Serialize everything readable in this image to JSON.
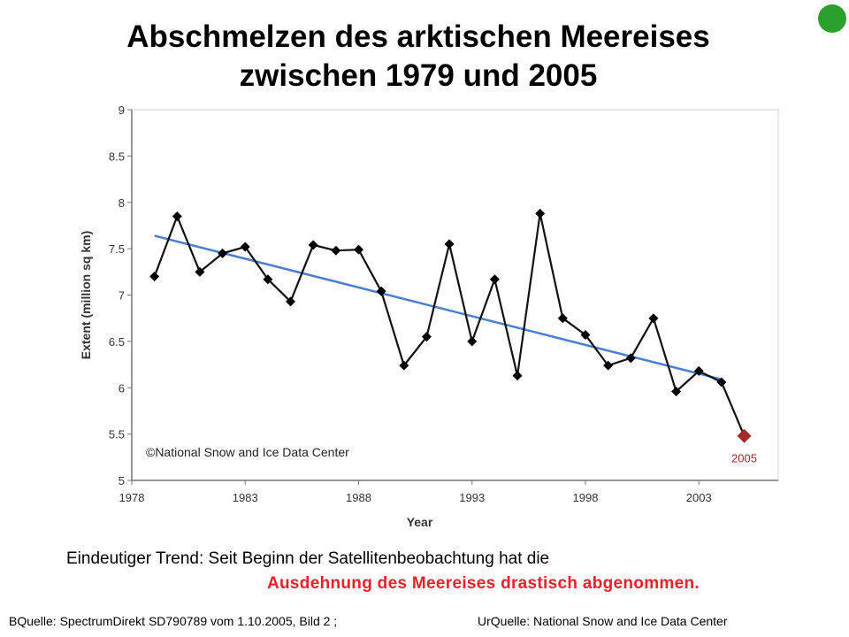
{
  "title_line1": "Abschmelzen des arktischen Meereises",
  "title_line2": "zwischen 1979 und 2005",
  "caption_line1": "Eindeutiger Trend: Seit Beginn der Satellitenbeobachtung hat die",
  "caption_line2": "Ausdehnung des Meereises drastisch abgenommen.",
  "source_left": "BQuelle: SpectrumDirekt  SD790789 vom 1.10.2005, Bild 2     ;",
  "source_right": "UrQuelle: National Snow and Ice Data Center",
  "colors": {
    "line": "#111111",
    "trend": "#4a7fd0",
    "highlight": "#a52a2a",
    "caption_emphasis": "#e8212a",
    "status_dot": "#2ca02c"
  },
  "chart_data": {
    "type": "line",
    "xlabel": "Year",
    "ylabel": "Extent (million sq km)",
    "xlim": [
      1978,
      2006.5
    ],
    "ylim": [
      5,
      9
    ],
    "x_ticks": [
      1978,
      1983,
      1988,
      1993,
      1998,
      2003
    ],
    "y_ticks": [
      "5",
      "5.5",
      "6",
      "6.5",
      "7",
      "7.5",
      "8",
      "8.5",
      "9"
    ],
    "grid": false,
    "watermark": "©National Snow and Ice Data Center",
    "series": [
      {
        "x": [
          1979,
          1980,
          1981,
          1982,
          1983,
          1984,
          1985,
          1986,
          1987,
          1988,
          1989,
          1990,
          1991,
          1992,
          1993,
          1994,
          1995,
          1996,
          1997,
          1998,
          1999,
          2000,
          2001,
          2002,
          2003,
          2004,
          2005
        ],
        "values": [
          7.2,
          7.85,
          7.25,
          7.45,
          7.52,
          7.17,
          6.93,
          7.54,
          7.48,
          7.49,
          7.04,
          6.24,
          6.55,
          7.55,
          6.5,
          7.17,
          6.13,
          7.88,
          6.75,
          6.57,
          6.24,
          6.32,
          6.75,
          5.96,
          6.18,
          6.06,
          5.48
        ]
      }
    ],
    "trend": {
      "x": [
        1979,
        2004
      ],
      "values": [
        7.64,
        6.09
      ]
    },
    "highlight": {
      "x": 2005,
      "value": 5.48,
      "label": "2005"
    }
  }
}
